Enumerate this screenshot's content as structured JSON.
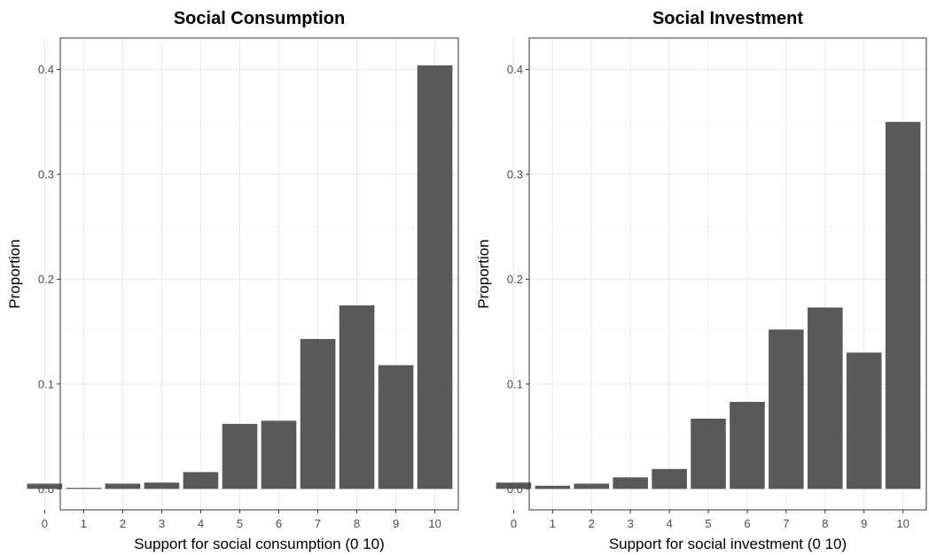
{
  "chart_data": [
    {
      "type": "bar",
      "title": "Social Consumption",
      "xlabel": "Support for social consumption (0  10)",
      "ylabel": "Proportion",
      "categories": [
        "0",
        "1",
        "2",
        "3",
        "4",
        "5",
        "6",
        "7",
        "8",
        "9",
        "10"
      ],
      "values": [
        0.005,
        0.001,
        0.005,
        0.006,
        0.016,
        0.062,
        0.065,
        0.143,
        0.175,
        0.118,
        0.404
      ],
      "yticks": [
        "0.0",
        "0.1",
        "0.2",
        "0.3",
        "0.4"
      ],
      "ylim": [
        -0.02,
        0.43
      ],
      "grid": true,
      "bar_color": "#595959"
    },
    {
      "type": "bar",
      "title": "Social Investment",
      "xlabel": "Support for social investment (0  10)",
      "ylabel": "Proportion",
      "categories": [
        "0",
        "1",
        "2",
        "3",
        "4",
        "5",
        "6",
        "7",
        "8",
        "9",
        "10"
      ],
      "values": [
        0.006,
        0.003,
        0.005,
        0.011,
        0.019,
        0.067,
        0.083,
        0.152,
        0.173,
        0.13,
        0.35
      ],
      "yticks": [
        "0.0",
        "0.1",
        "0.2",
        "0.3",
        "0.4"
      ],
      "ylim": [
        -0.02,
        0.43
      ],
      "grid": true,
      "bar_color": "#595959"
    }
  ]
}
